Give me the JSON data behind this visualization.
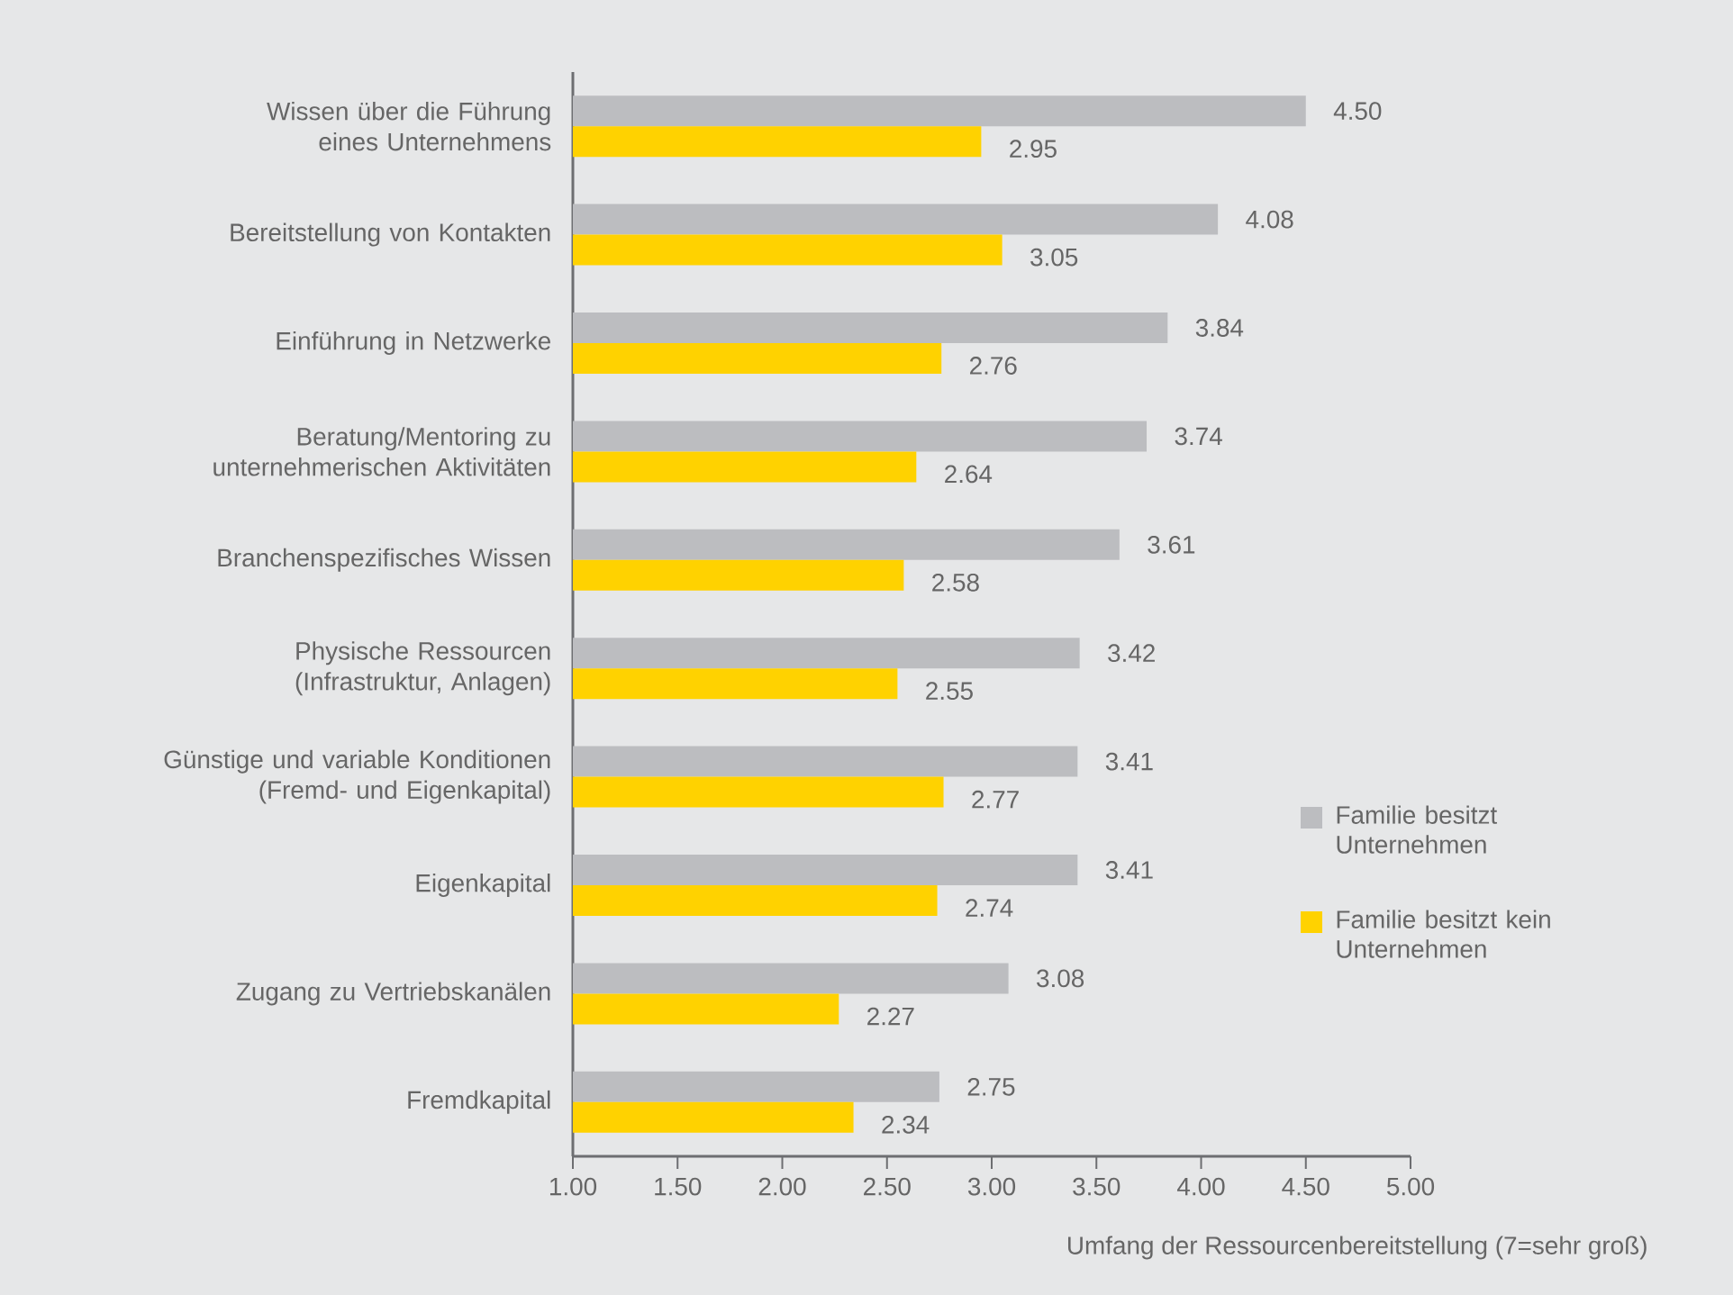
{
  "chart_data": {
    "type": "bar",
    "orientation": "horizontal",
    "xlabel": "Umfang der Ressourcenbereitstellung (7=sehr groß)",
    "categories": [
      "Wissen über die Führung eines Unternehmens",
      "Bereitstellung von Kontakten",
      "Einführung in Netzwerke",
      "Beratung/Mentoring zu unternehmerischen Aktivitäten",
      "Branchenspezifisches Wissen",
      "Physische Ressourcen (Infrastruktur, Anlagen)",
      "Günstige und variable Konditionen (Fremd- und Eigenkapital)",
      "Eigenkapital",
      "Zugang zu Vertriebskanälen",
      "Fremdkapital"
    ],
    "series": [
      {
        "name": "Familie besitzt Unternehmen",
        "color": "#bcbdc0",
        "values": [
          4.5,
          4.08,
          3.84,
          3.74,
          3.61,
          3.42,
          3.41,
          3.41,
          3.08,
          2.75
        ],
        "value_labels": [
          "4.50",
          "4.08",
          "3.84",
          "3.74",
          "3.61",
          "3.42",
          "3.41",
          "3.41",
          "3.08",
          "2.75"
        ]
      },
      {
        "name": "Familie besitzt kein Unternehmen",
        "color": "#ffd200",
        "values": [
          2.95,
          3.05,
          2.76,
          2.64,
          2.58,
          2.55,
          2.77,
          2.74,
          2.27,
          2.34
        ],
        "value_labels": [
          "2.95",
          "3.05",
          "2.76",
          "2.64",
          "2.58",
          "2.55",
          "2.77",
          "2.74",
          "2.27",
          "2.34"
        ]
      }
    ],
    "xlim": [
      1,
      5
    ],
    "xticks": [
      {
        "value": 1,
        "label": "1.00"
      },
      {
        "value": 1.5,
        "label": "1.50"
      },
      {
        "value": 2,
        "label": "2.00"
      },
      {
        "value": 2.5,
        "label": "2.50"
      },
      {
        "value": 3,
        "label": "3.00"
      },
      {
        "value": 3.5,
        "label": "3.50"
      },
      {
        "value": 4,
        "label": "4.00"
      },
      {
        "value": 4.5,
        "label": "4.50"
      },
      {
        "value": 5,
        "label": "5.00"
      }
    ],
    "legend": "right"
  }
}
